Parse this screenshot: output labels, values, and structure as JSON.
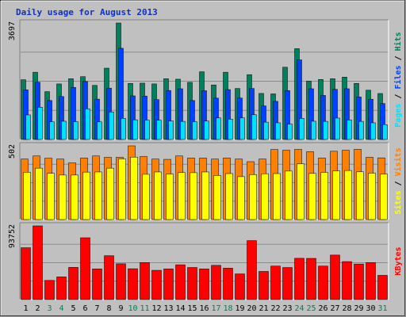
{
  "chart_data": {
    "type": "bar",
    "title": "Daily usage for August 2013",
    "categories": [
      "1",
      "2",
      "3",
      "4",
      "5",
      "6",
      "7",
      "8",
      "9",
      "10",
      "11",
      "12",
      "13",
      "14",
      "15",
      "16",
      "17",
      "18",
      "19",
      "20",
      "21",
      "22",
      "23",
      "24",
      "25",
      "26",
      "27",
      "28",
      "29",
      "30",
      "31"
    ],
    "weekend_days": [
      3,
      4,
      10,
      11,
      17,
      18,
      24,
      25,
      31
    ],
    "panels": [
      {
        "key": "traffic",
        "ymax_label": "3697",
        "ymax": 3697,
        "series": [
          {
            "name": "Hits",
            "color": "#00805c",
            "values": [
              1896,
              2134,
              1519,
              1763,
              1928,
              1994,
              1717,
              2263,
              3697,
              1780,
              1787,
              1763,
              1928,
              1913,
              1813,
              2149,
              1730,
              2134,
              1619,
              2058,
              1461,
              1447,
              2293,
              2882,
              1852,
              1905,
              1928,
              1979,
              1780,
              1564,
              1459
            ]
          },
          {
            "name": "Files",
            "color": "#0040ff",
            "values": [
              1575,
              1816,
              1236,
              1363,
              1652,
              1840,
              1280,
              1630,
              2894,
              1384,
              1378,
              1267,
              1555,
              1610,
              1236,
              1547,
              1312,
              1583,
              1316,
              1620,
              1066,
              1210,
              1550,
              2528,
              1610,
              1398,
              1590,
              1610,
              1350,
              1278,
              1140
            ]
          },
          {
            "name": "Pages",
            "color": "#00e0ff",
            "values": [
              780,
              1025,
              560,
              580,
              565,
              972,
              560,
              875,
              670,
              625,
              610,
              610,
              590,
              575,
              565,
              585,
              685,
              645,
              685,
              785,
              550,
              530,
              490,
              670,
              580,
              575,
              680,
              620,
              575,
              530,
              470
            ]
          }
        ],
        "legend": [
          "Pages",
          "Files",
          "Hits"
        ]
      },
      {
        "key": "visits",
        "ymax_label": "502",
        "ymax": 502,
        "series": [
          {
            "name": "Visits",
            "color": "#ff8000",
            "values": [
              412,
              433,
              418,
              412,
              386,
              419,
              433,
              424,
              424,
              502,
              429,
              412,
              410,
              433,
              419,
              419,
              412,
              419,
              412,
              394,
              412,
              477,
              472,
              478,
              462,
              419,
              465,
              472,
              478,
              424,
              420
            ]
          },
          {
            "name": "Sites",
            "color": "#ffff00",
            "values": [
              322,
              350,
              315,
              303,
              303,
              323,
              324,
              350,
              413,
              425,
              308,
              324,
              310,
              320,
              319,
              324,
              300,
              313,
              292,
              306,
              312,
              313,
              330,
              380,
              314,
              321,
              331,
              334,
              325,
              316,
              310
            ]
          }
        ],
        "legend": [
          "Sites",
          "Visits"
        ]
      },
      {
        "key": "kbytes",
        "ymax_label": "93752",
        "ymax": 93752,
        "series": [
          {
            "name": "KBytes",
            "color": "#ff0000",
            "values": [
              65970,
              93752,
              24370,
              28850,
              40980,
              78620,
              38970,
              55810,
              45490,
              39230,
              47130,
              37230,
              38970,
              44250,
              40820,
              38970,
              43520,
              39950,
              32660,
              75000,
              35800,
              42600,
              40800,
              52500,
              52400,
              42600,
              56600,
              48300,
              45200,
              47100,
              30800
            ]
          }
        ],
        "legend": [
          "KBytes"
        ]
      }
    ],
    "colors": {
      "background": "#c0c0c0",
      "title": "#1030c0",
      "weekday_label": "#000000",
      "weekend_label": "#00805c"
    }
  }
}
